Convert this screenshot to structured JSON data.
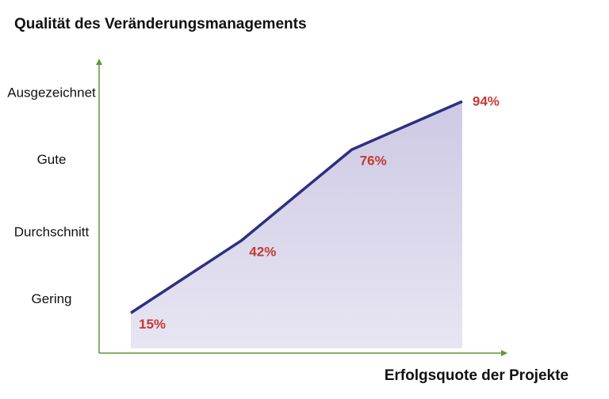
{
  "chart_data": {
    "type": "area",
    "title": "Qualität des Veränderungsmanagements",
    "x_label": "Erfolgsquote der Projekte",
    "categories": [
      null,
      null,
      null,
      null
    ],
    "values": [
      15,
      42,
      76,
      94
    ],
    "value_labels": [
      "15%",
      "42%",
      "76%",
      "94%"
    ],
    "color": "#2f2f80",
    "fill_color": "#cbc6e3",
    "label_color": "#c43a32",
    "axis_color": "#5a9a3a",
    "ylim": [
      0,
      110
    ],
    "yticks": [
      {
        "value": 20,
        "label": "Gering"
      },
      {
        "value": 45,
        "label": "Durchschnitt"
      },
      {
        "value": 72,
        "label": "Gute"
      },
      {
        "value": 97,
        "label": "Ausgezeichnet"
      }
    ],
    "grid": false
  }
}
